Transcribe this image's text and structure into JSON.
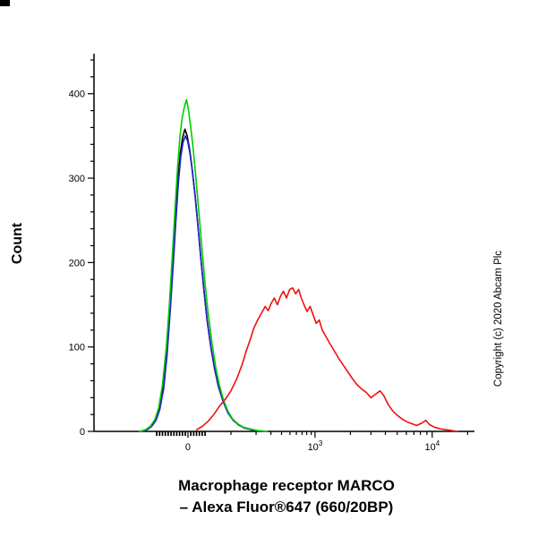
{
  "labels": {
    "y_axis": "Count",
    "title_line1": "Macrophage receptor MARCO",
    "title_line2": "– Alexa Fluor®647 (660/20BP)",
    "copyright": "Copyright (c) 2020 Abcam Plc"
  },
  "chart_data": {
    "type": "line",
    "subtype": "flow-cytometry-histogram-overlay",
    "title": "Macrophage receptor MARCO – Alexa Fluor®647 (660/20BP)",
    "xlabel": "Macrophage receptor MARCO – Alexa Fluor®647 (660/20BP)",
    "ylabel": "Count",
    "ylim": [
      0,
      440
    ],
    "y_major_ticks": [
      0,
      100,
      200,
      300,
      400
    ],
    "y_minor_step": 20,
    "x_scale": "biexponential",
    "grid": false,
    "legend": "none",
    "x_major_ticks": [
      {
        "label": "0",
        "exp": null,
        "pos": 0.247
      },
      {
        "label": "10",
        "exp": "3",
        "pos": 0.581
      },
      {
        "label": "10",
        "exp": "4",
        "pos": 0.889
      }
    ],
    "x_dense_ticks": [
      0.165,
      0.1725,
      0.18,
      0.1875,
      0.195,
      0.2025,
      0.21,
      0.2175,
      0.225,
      0.2325,
      0.24,
      0.2545,
      0.262,
      0.2695,
      0.277,
      0.2845,
      0.292
    ],
    "x_minor_ticks": [
      0.36,
      0.426,
      0.465,
      0.493,
      0.515,
      0.532,
      0.547,
      0.559,
      0.571,
      0.674,
      0.728,
      0.766,
      0.797,
      0.821,
      0.841,
      0.858,
      0.875,
      0.982
    ],
    "series": [
      {
        "name": "black",
        "color": "#000000",
        "peak_count": 358,
        "points": [
          [
            0.122,
            0
          ],
          [
            0.138,
            2
          ],
          [
            0.15,
            6
          ],
          [
            0.162,
            14
          ],
          [
            0.172,
            27
          ],
          [
            0.182,
            52
          ],
          [
            0.191,
            95
          ],
          [
            0.199,
            145
          ],
          [
            0.207,
            200
          ],
          [
            0.214,
            252
          ],
          [
            0.221,
            300
          ],
          [
            0.227,
            330
          ],
          [
            0.233,
            348
          ],
          [
            0.239,
            358
          ],
          [
            0.245,
            350
          ],
          [
            0.251,
            335
          ],
          [
            0.257,
            315
          ],
          [
            0.265,
            283
          ],
          [
            0.273,
            245
          ],
          [
            0.281,
            205
          ],
          [
            0.289,
            167
          ],
          [
            0.297,
            133
          ],
          [
            0.307,
            100
          ],
          [
            0.317,
            74
          ],
          [
            0.327,
            53
          ],
          [
            0.339,
            36
          ],
          [
            0.351,
            23
          ],
          [
            0.365,
            14
          ],
          [
            0.379,
            8
          ],
          [
            0.395,
            4
          ],
          [
            0.414,
            2
          ],
          [
            0.438,
            0
          ]
        ]
      },
      {
        "name": "blue",
        "color": "#2222cc",
        "peak_count": 350,
        "points": [
          [
            0.125,
            0
          ],
          [
            0.14,
            2
          ],
          [
            0.152,
            6
          ],
          [
            0.163,
            13
          ],
          [
            0.173,
            26
          ],
          [
            0.183,
            50
          ],
          [
            0.192,
            90
          ],
          [
            0.2,
            140
          ],
          [
            0.208,
            195
          ],
          [
            0.215,
            248
          ],
          [
            0.222,
            295
          ],
          [
            0.228,
            325
          ],
          [
            0.234,
            342
          ],
          [
            0.24,
            350
          ],
          [
            0.246,
            344
          ],
          [
            0.252,
            330
          ],
          [
            0.258,
            310
          ],
          [
            0.266,
            278
          ],
          [
            0.274,
            240
          ],
          [
            0.282,
            200
          ],
          [
            0.29,
            163
          ],
          [
            0.298,
            130
          ],
          [
            0.308,
            98
          ],
          [
            0.318,
            72
          ],
          [
            0.328,
            52
          ],
          [
            0.34,
            35
          ],
          [
            0.352,
            22
          ],
          [
            0.366,
            13
          ],
          [
            0.38,
            8
          ],
          [
            0.396,
            4
          ],
          [
            0.415,
            2
          ],
          [
            0.44,
            0
          ]
        ]
      },
      {
        "name": "green",
        "color": "#00cc00",
        "peak_count": 393,
        "points": [
          [
            0.12,
            0
          ],
          [
            0.135,
            2
          ],
          [
            0.148,
            6
          ],
          [
            0.16,
            14
          ],
          [
            0.17,
            28
          ],
          [
            0.18,
            55
          ],
          [
            0.19,
            100
          ],
          [
            0.198,
            150
          ],
          [
            0.206,
            210
          ],
          [
            0.214,
            270
          ],
          [
            0.22,
            315
          ],
          [
            0.226,
            350
          ],
          [
            0.232,
            372
          ],
          [
            0.238,
            385
          ],
          [
            0.243,
            393
          ],
          [
            0.248,
            382
          ],
          [
            0.254,
            362
          ],
          [
            0.26,
            338
          ],
          [
            0.268,
            300
          ],
          [
            0.276,
            258
          ],
          [
            0.284,
            215
          ],
          [
            0.292,
            175
          ],
          [
            0.3,
            140
          ],
          [
            0.31,
            105
          ],
          [
            0.32,
            76
          ],
          [
            0.33,
            54
          ],
          [
            0.34,
            38
          ],
          [
            0.352,
            24
          ],
          [
            0.364,
            15
          ],
          [
            0.378,
            9
          ],
          [
            0.392,
            5
          ],
          [
            0.41,
            3
          ],
          [
            0.43,
            1
          ],
          [
            0.455,
            0
          ]
        ]
      },
      {
        "name": "red",
        "color": "#ee1111",
        "peak_count": 170,
        "points": [
          [
            0.27,
            2
          ],
          [
            0.285,
            6
          ],
          [
            0.3,
            12
          ],
          [
            0.315,
            20
          ],
          [
            0.33,
            30
          ],
          [
            0.345,
            38
          ],
          [
            0.36,
            48
          ],
          [
            0.375,
            62
          ],
          [
            0.39,
            80
          ],
          [
            0.4,
            95
          ],
          [
            0.41,
            108
          ],
          [
            0.42,
            122
          ],
          [
            0.43,
            132
          ],
          [
            0.44,
            140
          ],
          [
            0.45,
            148
          ],
          [
            0.458,
            143
          ],
          [
            0.466,
            152
          ],
          [
            0.474,
            158
          ],
          [
            0.482,
            150
          ],
          [
            0.49,
            160
          ],
          [
            0.498,
            166
          ],
          [
            0.506,
            158
          ],
          [
            0.514,
            168
          ],
          [
            0.522,
            170
          ],
          [
            0.53,
            163
          ],
          [
            0.538,
            168
          ],
          [
            0.545,
            158
          ],
          [
            0.552,
            150
          ],
          [
            0.56,
            142
          ],
          [
            0.568,
            148
          ],
          [
            0.576,
            138
          ],
          [
            0.584,
            128
          ],
          [
            0.592,
            132
          ],
          [
            0.6,
            120
          ],
          [
            0.61,
            112
          ],
          [
            0.62,
            104
          ],
          [
            0.632,
            95
          ],
          [
            0.644,
            86
          ],
          [
            0.656,
            78
          ],
          [
            0.668,
            70
          ],
          [
            0.68,
            62
          ],
          [
            0.692,
            55
          ],
          [
            0.704,
            50
          ],
          [
            0.716,
            46
          ],
          [
            0.728,
            40
          ],
          [
            0.74,
            44
          ],
          [
            0.752,
            48
          ],
          [
            0.762,
            42
          ],
          [
            0.772,
            33
          ],
          [
            0.782,
            26
          ],
          [
            0.79,
            22
          ],
          [
            0.8,
            18
          ],
          [
            0.812,
            14
          ],
          [
            0.824,
            11
          ],
          [
            0.836,
            9
          ],
          [
            0.848,
            7
          ],
          [
            0.862,
            10
          ],
          [
            0.872,
            13
          ],
          [
            0.882,
            8
          ],
          [
            0.895,
            5
          ],
          [
            0.91,
            3
          ],
          [
            0.925,
            2
          ],
          [
            0.94,
            1
          ],
          [
            0.955,
            0
          ]
        ]
      }
    ]
  }
}
